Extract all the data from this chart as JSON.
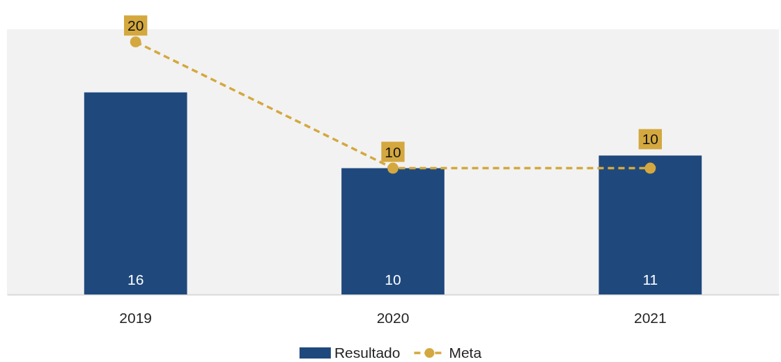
{
  "chart_data": {
    "type": "bar",
    "categories": [
      "2019",
      "2020",
      "2021"
    ],
    "series": [
      {
        "name": "Resultado",
        "color": "#1f497d",
        "values": [
          16,
          10,
          11
        ]
      },
      {
        "name": "Meta",
        "type": "line",
        "color": "#d4a83f",
        "values": [
          20,
          10,
          10
        ],
        "marker": "circle",
        "line_style": "dashed"
      }
    ],
    "ylim": [
      0,
      21
    ],
    "tick_labels": "x",
    "data_labels": true,
    "legend": "bottom"
  }
}
